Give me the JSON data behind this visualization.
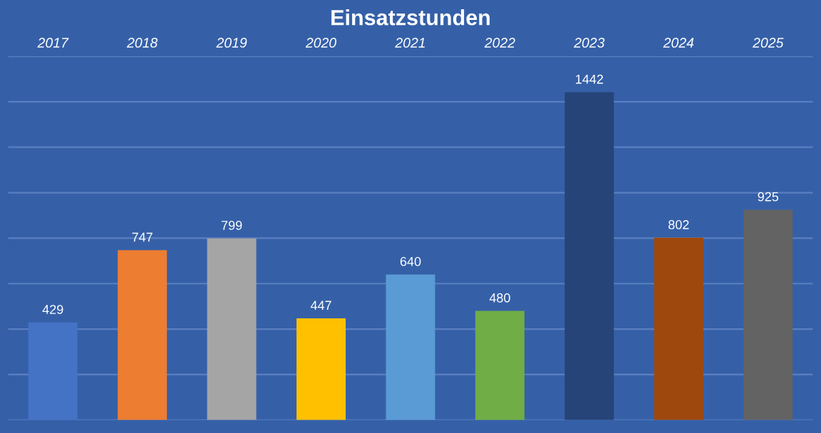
{
  "chart_data": {
    "type": "bar",
    "title": "Einsatzstunden",
    "categories": [
      "2017",
      "2018",
      "2019",
      "2020",
      "2021",
      "2022",
      "2023",
      "2024",
      "2025"
    ],
    "values": [
      429,
      747,
      799,
      447,
      640,
      480,
      1442,
      802,
      925
    ],
    "colors": [
      "#4472c4",
      "#ed7d31",
      "#a5a5a5",
      "#ffc000",
      "#5b9bd5",
      "#70ad47",
      "#264478",
      "#9e480e",
      "#636363"
    ],
    "ylim": [
      0,
      1600
    ],
    "yticks": [
      {
        "value": 0,
        "label": null
      },
      {
        "value": 200,
        "label": null
      },
      {
        "value": 400,
        "label": null
      },
      {
        "value": 600,
        "label": null
      },
      {
        "value": 800,
        "label": null
      },
      {
        "value": 1000,
        "label": null
      },
      {
        "value": 1200,
        "label": null
      },
      {
        "value": 1400,
        "label": null
      },
      {
        "value": 1600,
        "label": null
      }
    ],
    "tick_labels": "x",
    "grid": "y",
    "data_labels": true
  }
}
